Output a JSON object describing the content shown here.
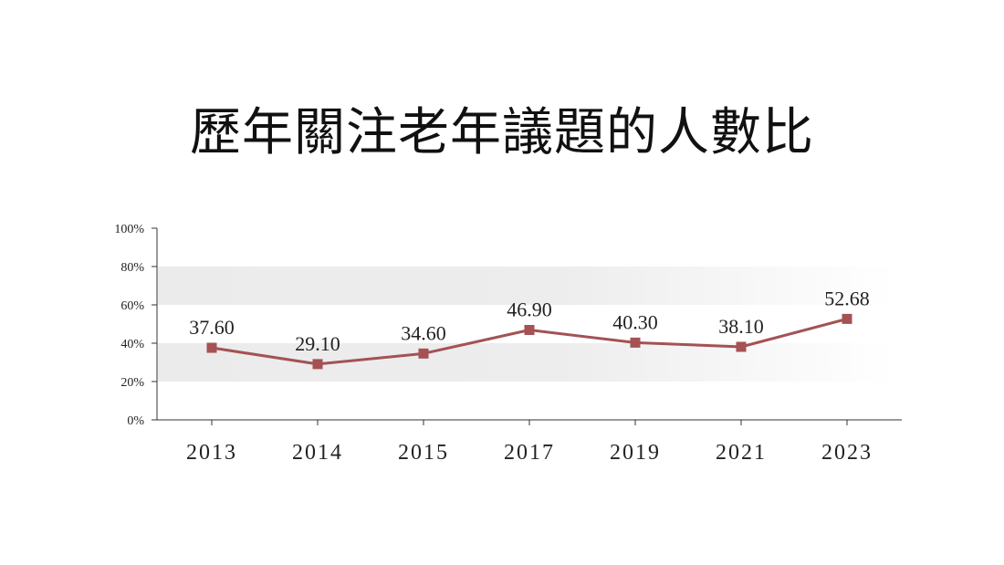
{
  "chart_data": {
    "type": "line",
    "title": "歷年關注老年議題的人數比",
    "categories": [
      "2013",
      "2014",
      "2015",
      "2017",
      "2019",
      "2021",
      "2023"
    ],
    "values": [
      37.6,
      29.1,
      34.6,
      46.9,
      40.3,
      38.1,
      52.68
    ],
    "value_labels": [
      "37.60",
      "29.10",
      "34.60",
      "46.90",
      "40.30",
      "38.10",
      "52.68"
    ],
    "yticks": [
      "0%",
      "20%",
      "40%",
      "60%",
      "80%",
      "100%"
    ],
    "ylim": [
      0,
      100
    ],
    "xlabel": "",
    "ylabel": "",
    "grid": false,
    "bands": [
      [
        20,
        40
      ],
      [
        60,
        80
      ]
    ],
    "colors": {
      "line": "#a45254",
      "marker": "#a45254",
      "band": "#ececec",
      "axis": "#333333"
    }
  }
}
